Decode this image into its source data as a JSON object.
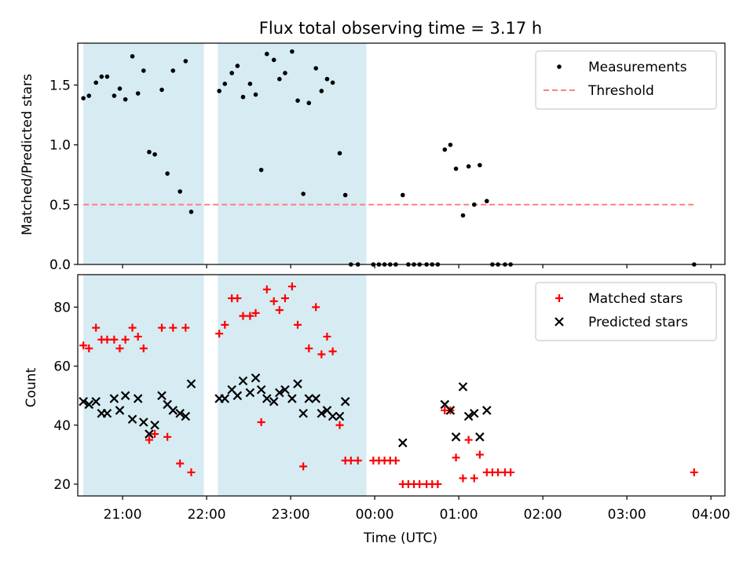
{
  "chart_data": [
    {
      "type": "scatter",
      "title": "Flux total observing time = 3.17 h",
      "ylabel": "Matched/Predicted stars",
      "ylim": [
        0,
        1.85
      ],
      "xlim": [
        "20:28",
        "04:10"
      ],
      "yticks": [
        0.0,
        0.5,
        1.0,
        1.5
      ],
      "ytick_labels": [
        "0.0",
        "0.5",
        "1.0",
        "1.5"
      ],
      "shaded_intervals": [
        [
          "20:32",
          "21:58"
        ],
        [
          "22:08",
          "23:54"
        ]
      ],
      "shade_color": "#add8e6",
      "legend_position": "top-right",
      "threshold": {
        "name": "Threshold",
        "value": 0.5,
        "x_range": [
          "20:32",
          "03:48"
        ],
        "color": "#ff7f7f"
      },
      "series": [
        {
          "name": "Measurements",
          "color": "#000000",
          "points": [
            [
              "20:32",
              1.39
            ],
            [
              "20:36",
              1.41
            ],
            [
              "20:41",
              1.52
            ],
            [
              "20:45",
              1.57
            ],
            [
              "20:49",
              1.57
            ],
            [
              "20:54",
              1.41
            ],
            [
              "20:58",
              1.47
            ],
            [
              "21:02",
              1.38
            ],
            [
              "21:07",
              1.74
            ],
            [
              "21:11",
              1.43
            ],
            [
              "21:15",
              1.62
            ],
            [
              "21:19",
              0.94
            ],
            [
              "21:23",
              0.92
            ],
            [
              "21:28",
              1.46
            ],
            [
              "21:32",
              0.76
            ],
            [
              "21:36",
              1.62
            ],
            [
              "21:41",
              0.61
            ],
            [
              "21:45",
              1.7
            ],
            [
              "21:49",
              0.44
            ],
            [
              "22:09",
              1.45
            ],
            [
              "22:13",
              1.51
            ],
            [
              "22:18",
              1.6
            ],
            [
              "22:22",
              1.66
            ],
            [
              "22:26",
              1.4
            ],
            [
              "22:31",
              1.51
            ],
            [
              "22:35",
              1.42
            ],
            [
              "22:39",
              0.79
            ],
            [
              "22:43",
              1.76
            ],
            [
              "22:48",
              1.71
            ],
            [
              "22:52",
              1.55
            ],
            [
              "22:56",
              1.6
            ],
            [
              "23:01",
              1.78
            ],
            [
              "23:05",
              1.37
            ],
            [
              "23:09",
              0.59
            ],
            [
              "23:13",
              1.35
            ],
            [
              "23:18",
              1.64
            ],
            [
              "23:22",
              1.45
            ],
            [
              "23:26",
              1.55
            ],
            [
              "23:30",
              1.52
            ],
            [
              "23:35",
              0.93
            ],
            [
              "23:39",
              0.58
            ],
            [
              "23:43",
              0.0
            ],
            [
              "23:48",
              0.0
            ],
            [
              "23:59",
              0.0
            ],
            [
              "00:03",
              0.0
            ],
            [
              "00:07",
              0.0
            ],
            [
              "00:11",
              0.0
            ],
            [
              "00:15",
              0.0
            ],
            [
              "00:20",
              0.58
            ],
            [
              "00:24",
              0.0
            ],
            [
              "00:28",
              0.0
            ],
            [
              "00:32",
              0.0
            ],
            [
              "00:37",
              0.0
            ],
            [
              "00:41",
              0.0
            ],
            [
              "00:45",
              0.0
            ],
            [
              "00:50",
              0.96
            ],
            [
              "00:54",
              1.0
            ],
            [
              "00:58",
              0.8
            ],
            [
              "01:03",
              0.41
            ],
            [
              "01:07",
              0.82
            ],
            [
              "01:11",
              0.5
            ],
            [
              "01:15",
              0.83
            ],
            [
              "01:20",
              0.53
            ],
            [
              "01:24",
              0.0
            ],
            [
              "01:28",
              0.0
            ],
            [
              "01:33",
              0.0
            ],
            [
              "01:37",
              0.0
            ],
            [
              "03:48",
              0.0
            ]
          ]
        }
      ]
    },
    {
      "type": "scatter",
      "xlabel": "Time (UTC)",
      "ylabel": "Count",
      "ylim": [
        16,
        91
      ],
      "xlim": [
        "20:28",
        "04:10"
      ],
      "yticks": [
        20,
        40,
        60,
        80
      ],
      "ytick_labels": [
        "20",
        "40",
        "60",
        "80"
      ],
      "xticks": [
        "21:00",
        "22:00",
        "23:00",
        "00:00",
        "01:00",
        "02:00",
        "03:00",
        "04:00"
      ],
      "xtick_labels": [
        "21:00",
        "22:00",
        "23:00",
        "00:00",
        "01:00",
        "02:00",
        "03:00",
        "04:00"
      ],
      "shaded_intervals": [
        [
          "20:32",
          "21:58"
        ],
        [
          "22:08",
          "23:54"
        ]
      ],
      "shade_color": "#add8e6",
      "legend_position": "top-right",
      "series": [
        {
          "name": "Matched stars",
          "marker": "plus",
          "color": "#ff0000",
          "points": [
            [
              "20:32",
              67
            ],
            [
              "20:36",
              66
            ],
            [
              "20:41",
              73
            ],
            [
              "20:45",
              69
            ],
            [
              "20:49",
              69
            ],
            [
              "20:54",
              69
            ],
            [
              "20:58",
              66
            ],
            [
              "21:02",
              69
            ],
            [
              "21:07",
              73
            ],
            [
              "21:11",
              70
            ],
            [
              "21:15",
              66
            ],
            [
              "21:19",
              35
            ],
            [
              "21:23",
              37
            ],
            [
              "21:28",
              73
            ],
            [
              "21:32",
              36
            ],
            [
              "21:36",
              73
            ],
            [
              "21:41",
              27
            ],
            [
              "21:45",
              73
            ],
            [
              "21:49",
              24
            ],
            [
              "22:09",
              71
            ],
            [
              "22:13",
              74
            ],
            [
              "22:18",
              83
            ],
            [
              "22:22",
              83
            ],
            [
              "22:26",
              77
            ],
            [
              "22:31",
              77
            ],
            [
              "22:35",
              78
            ],
            [
              "22:39",
              41
            ],
            [
              "22:43",
              86
            ],
            [
              "22:48",
              82
            ],
            [
              "22:52",
              79
            ],
            [
              "22:56",
              83
            ],
            [
              "23:01",
              87
            ],
            [
              "23:05",
              74
            ],
            [
              "23:09",
              26
            ],
            [
              "23:13",
              66
            ],
            [
              "23:18",
              80
            ],
            [
              "23:22",
              64
            ],
            [
              "23:26",
              70
            ],
            [
              "23:30",
              65
            ],
            [
              "23:35",
              40
            ],
            [
              "23:39",
              28
            ],
            [
              "23:43",
              28
            ],
            [
              "23:48",
              28
            ],
            [
              "23:59",
              28
            ],
            [
              "00:03",
              28
            ],
            [
              "00:07",
              28
            ],
            [
              "00:11",
              28
            ],
            [
              "00:15",
              28
            ],
            [
              "00:20",
              20
            ],
            [
              "00:24",
              20
            ],
            [
              "00:28",
              20
            ],
            [
              "00:32",
              20
            ],
            [
              "00:37",
              20
            ],
            [
              "00:41",
              20
            ],
            [
              "00:45",
              20
            ],
            [
              "00:50",
              45
            ],
            [
              "00:54",
              45
            ],
            [
              "00:58",
              29
            ],
            [
              "01:03",
              22
            ],
            [
              "01:07",
              35
            ],
            [
              "01:11",
              22
            ],
            [
              "01:15",
              30
            ],
            [
              "01:20",
              24
            ],
            [
              "01:24",
              24
            ],
            [
              "01:28",
              24
            ],
            [
              "01:33",
              24
            ],
            [
              "01:37",
              24
            ],
            [
              "03:48",
              24
            ]
          ]
        },
        {
          "name": "Predicted stars",
          "marker": "x",
          "color": "#000000",
          "points": [
            [
              "20:32",
              48
            ],
            [
              "20:36",
              47
            ],
            [
              "20:41",
              48
            ],
            [
              "20:45",
              44
            ],
            [
              "20:49",
              44
            ],
            [
              "20:54",
              49
            ],
            [
              "20:58",
              45
            ],
            [
              "21:02",
              50
            ],
            [
              "21:07",
              42
            ],
            [
              "21:11",
              49
            ],
            [
              "21:15",
              41
            ],
            [
              "21:19",
              37
            ],
            [
              "21:23",
              40
            ],
            [
              "21:28",
              50
            ],
            [
              "21:32",
              47
            ],
            [
              "21:36",
              45
            ],
            [
              "21:41",
              44
            ],
            [
              "21:45",
              43
            ],
            [
              "21:49",
              54
            ],
            [
              "22:09",
              49
            ],
            [
              "22:13",
              49
            ],
            [
              "22:18",
              52
            ],
            [
              "22:22",
              50
            ],
            [
              "22:26",
              55
            ],
            [
              "22:31",
              51
            ],
            [
              "22:35",
              56
            ],
            [
              "22:39",
              52
            ],
            [
              "22:43",
              49
            ],
            [
              "22:48",
              48
            ],
            [
              "22:52",
              51
            ],
            [
              "22:56",
              52
            ],
            [
              "23:01",
              49
            ],
            [
              "23:05",
              54
            ],
            [
              "23:09",
              44
            ],
            [
              "23:13",
              49
            ],
            [
              "23:18",
              49
            ],
            [
              "23:22",
              44
            ],
            [
              "23:26",
              45
            ],
            [
              "23:30",
              43
            ],
            [
              "23:35",
              43
            ],
            [
              "23:39",
              48
            ],
            [
              "00:20",
              34
            ],
            [
              "00:50",
              47
            ],
            [
              "00:54",
              45
            ],
            [
              "00:58",
              36
            ],
            [
              "01:03",
              53
            ],
            [
              "01:07",
              43
            ],
            [
              "01:11",
              44
            ],
            [
              "01:15",
              36
            ],
            [
              "01:20",
              45
            ]
          ]
        }
      ]
    }
  ]
}
